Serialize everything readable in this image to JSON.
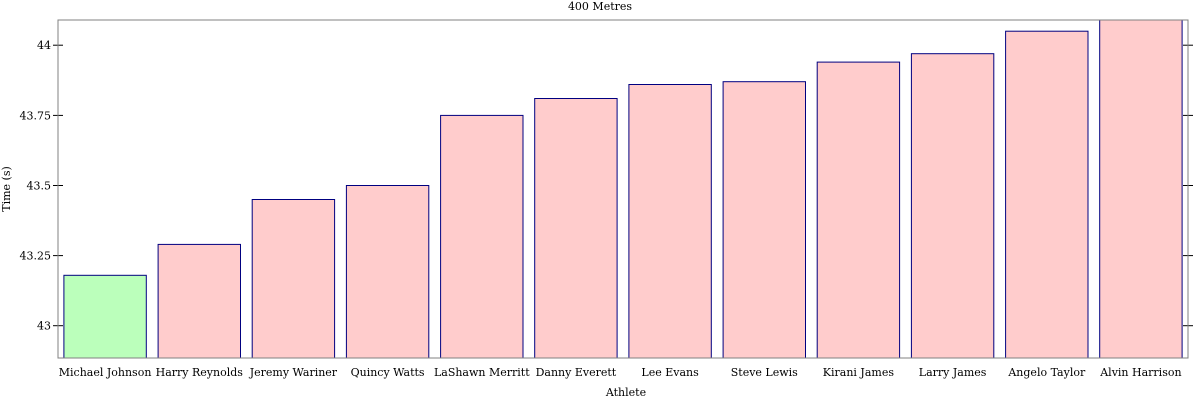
{
  "chart_data": {
    "type": "bar",
    "title": "400 Metres",
    "xlabel": "Athlete",
    "ylabel": "Time (s)",
    "ylim": [
      42.885,
      44.09
    ],
    "yticks": [
      43,
      43.25,
      43.5,
      43.75,
      44
    ],
    "ytick_labels": [
      "43",
      "43.25",
      "43.5",
      "43.75",
      "44"
    ],
    "grid": false,
    "categories": [
      "Michael Johnson",
      "Harry Reynolds",
      "Jeremy Wariner",
      "Quincy Watts",
      "LaShawn Merritt",
      "Danny Everett",
      "Lee Evans",
      "Steve Lewis",
      "Kirani James",
      "Larry James",
      "Angelo Taylor",
      "Alvin Harrison"
    ],
    "values": [
      43.18,
      43.29,
      43.45,
      43.5,
      43.75,
      43.81,
      43.86,
      43.87,
      43.94,
      43.97,
      44.05,
      44.09
    ],
    "highlight_index": 0,
    "colors": {
      "bar_fill": "#ffcccc",
      "highlight_fill": "#bbffbb",
      "bar_stroke": "#000080",
      "axis": "#808080",
      "tick": "#000000"
    }
  }
}
